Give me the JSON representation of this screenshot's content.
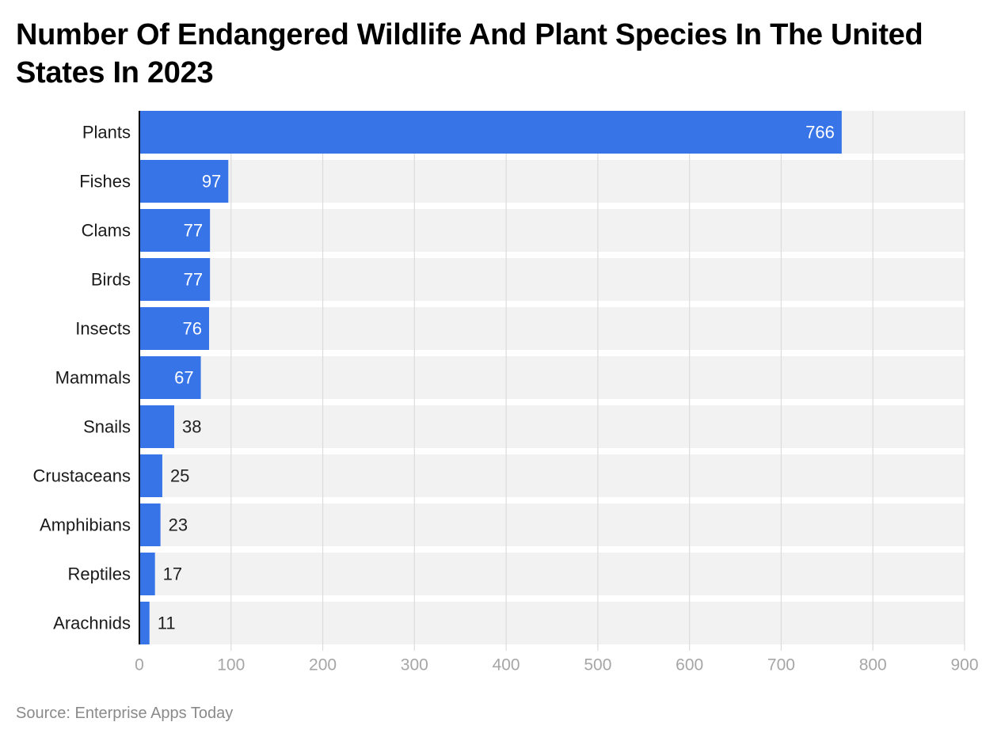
{
  "title": "Number Of Endangered Wildlife And Plant Species In The United States In 2023",
  "source": "Source: Enterprise Apps Today",
  "colors": {
    "bar": "#3674e8",
    "band": "#f2f2f2",
    "grid": "#dcdcdc",
    "axis": "#000000",
    "label_inside": "#ffffff",
    "label_outside": "#222222",
    "tick": "#a6a6a6"
  },
  "chart_data": {
    "type": "bar",
    "orientation": "horizontal",
    "title": "Number Of Endangered Wildlife And Plant Species In The United States In 2023",
    "xlabel": "",
    "ylabel": "",
    "xlim": [
      0,
      900
    ],
    "grid": true,
    "xticks": [
      0,
      100,
      200,
      300,
      400,
      500,
      600,
      700,
      800,
      900
    ],
    "categories": [
      "Plants",
      "Fishes",
      "Clams",
      "Birds",
      "Insects",
      "Mammals",
      "Snails",
      "Crustaceans",
      "Amphibians",
      "Reptiles",
      "Arachnids"
    ],
    "values": [
      766,
      97,
      77,
      77,
      76,
      67,
      38,
      25,
      23,
      17,
      11
    ]
  }
}
